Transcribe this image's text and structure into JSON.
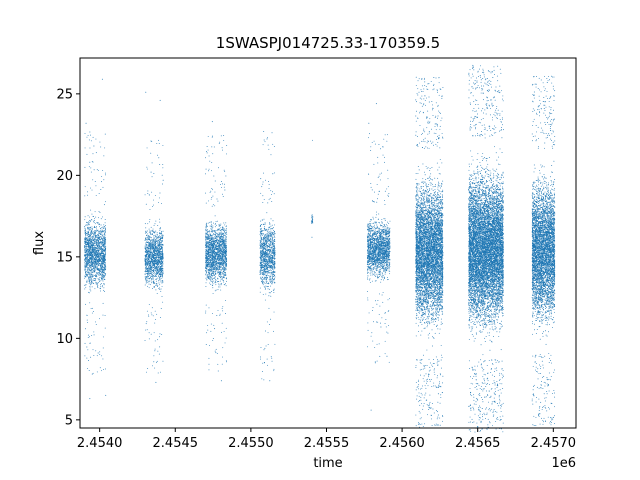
{
  "chart_data": {
    "type": "scatter",
    "title": "1SWASPJ014725.33-170359.5",
    "xlabel": "time",
    "ylabel": "flux",
    "x_offset_label": "1e6",
    "xlim": [
      2453870,
      2457150
    ],
    "ylim": [
      4.5,
      27.2
    ],
    "x_ticks": [
      2454000,
      2454500,
      2455000,
      2455500,
      2456000,
      2456500,
      2457000
    ],
    "x_tick_labels": [
      "2.4540",
      "2.4545",
      "2.4550",
      "2.4555",
      "2.4560",
      "2.4565",
      "2.4570"
    ],
    "y_ticks": [
      5,
      10,
      15,
      20,
      25
    ],
    "y_tick_labels": [
      "5",
      "10",
      "15",
      "20",
      "25"
    ],
    "grid": false,
    "marker_color": "#1f77b4",
    "series": [
      {
        "seasons": [
          {
            "x_start": 2453900,
            "x_end": 2454040,
            "density": 12,
            "flux_min": 12.0,
            "flux_max": 18.0,
            "flux_center": 15.2,
            "outliers": [
              [
                2453910,
                23.2
              ],
              [
                2453935,
                6.3
              ],
              [
                2453962,
                21.8
              ],
              [
                2453990,
                9.1
              ],
              [
                2454018,
                25.9
              ],
              [
                2454040,
                6.5
              ]
            ]
          },
          {
            "x_start": 2454300,
            "x_end": 2454420,
            "density": 11,
            "flux_min": 12.3,
            "flux_max": 17.6,
            "flux_center": 15.0,
            "outliers": [
              [
                2454305,
                25.1
              ],
              [
                2454340,
                20.2
              ],
              [
                2454372,
                7.3
              ],
              [
                2454400,
                24.6
              ],
              [
                2454420,
                19.7
              ]
            ]
          },
          {
            "x_start": 2454700,
            "x_end": 2454840,
            "density": 12,
            "flux_min": 12.4,
            "flux_max": 18.0,
            "flux_center": 15.2,
            "outliers": [
              [
                2454745,
                23.3
              ],
              [
                2454760,
                10.6
              ],
              [
                2454805,
                7.4
              ],
              [
                2454828,
                19.1
              ]
            ]
          },
          {
            "x_start": 2455060,
            "x_end": 2455160,
            "density": 10,
            "flux_min": 12.0,
            "flux_max": 18.3,
            "flux_center": 15.1,
            "outliers": [
              [
                2455065,
                19.8
              ],
              [
                2455090,
                8.5
              ],
              [
                2455125,
                7.4
              ],
              [
                2455145,
                20.1
              ]
            ]
          },
          {
            "x_start": 2455400,
            "x_end": 2455410,
            "density": 2,
            "flux_min": 16.8,
            "flux_max": 17.8,
            "flux_center": 17.3,
            "outliers": [
              [
                2455404,
                16.2
              ]
            ]
          },
          {
            "x_start": 2455770,
            "x_end": 2455920,
            "density": 11,
            "flux_min": 13.0,
            "flux_max": 18.2,
            "flux_center": 15.5,
            "outliers": [
              [
                2455780,
                23.2
              ],
              [
                2455795,
                5.6
              ],
              [
                2455830,
                24.4
              ],
              [
                2455860,
                10.7
              ],
              [
                2455900,
                8.9
              ]
            ]
          },
          {
            "x_start": 2456090,
            "x_end": 2456270,
            "density": 30,
            "flux_min": 8.5,
            "flux_max": 21.0,
            "flux_center": 15.3,
            "outliers": [
              [
                2456130,
                25.9
              ],
              [
                2456160,
                6.2
              ],
              [
                2456210,
                26.0
              ],
              [
                2456240,
                6.6
              ],
              [
                2456180,
                24.5
              ]
            ]
          },
          {
            "x_start": 2456440,
            "x_end": 2456670,
            "density": 36,
            "flux_min": 8.5,
            "flux_max": 22.0,
            "flux_center": 15.5,
            "outliers": [
              [
                2456480,
                25.6
              ],
              [
                2456530,
                5.7
              ],
              [
                2456600,
                26.0
              ],
              [
                2456630,
                6.0
              ],
              [
                2456560,
                24.8
              ]
            ]
          },
          {
            "x_start": 2456860,
            "x_end": 2457010,
            "density": 30,
            "flux_min": 9.0,
            "flux_max": 21.5,
            "flux_center": 15.4,
            "outliers": [
              [
                2456880,
                25.6
              ],
              [
                2456910,
                5.8
              ],
              [
                2456960,
                25.7
              ],
              [
                2456990,
                6.0
              ],
              [
                2456940,
                24.1
              ]
            ]
          }
        ]
      }
    ]
  }
}
